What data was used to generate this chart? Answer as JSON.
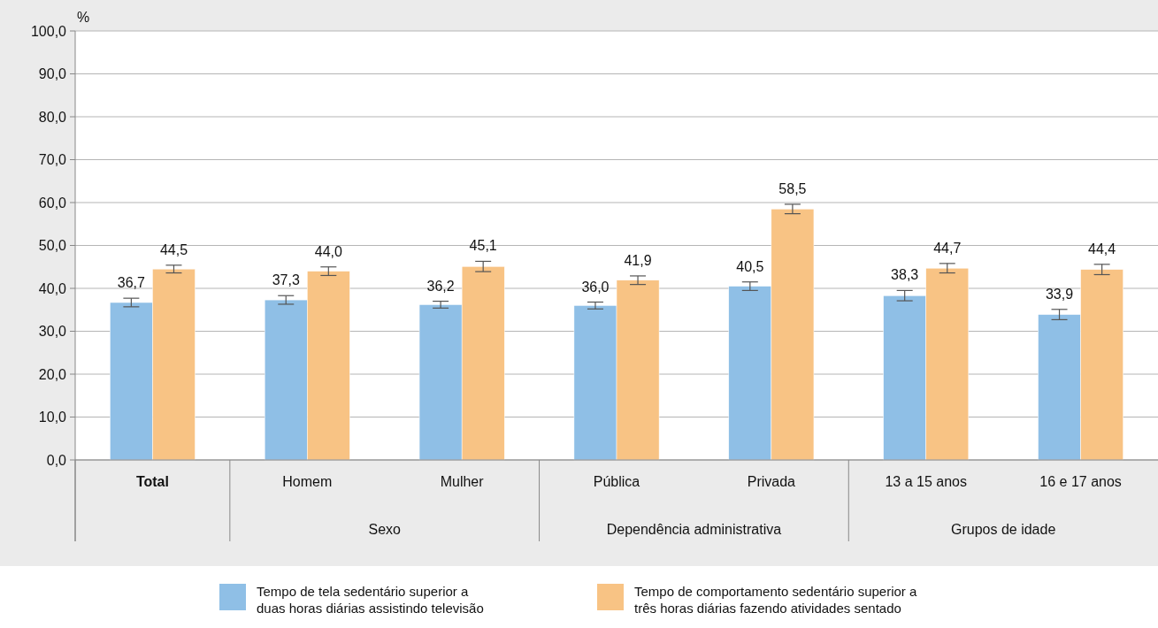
{
  "chart_data": {
    "type": "bar",
    "ylabel": "%",
    "categories": [
      "Total",
      "Homem",
      "Mulher",
      "Pública",
      "Privada",
      "13 a 15 anos",
      "16 e 17 anos"
    ],
    "annotations": [
      "Sexo",
      "Dependência administrativa",
      "Grupos de idade"
    ],
    "series": [
      {
        "name": "Tempo de tela sedentário superior a duas horas diárias assistindo televisão",
        "color": "#8fbfe6",
        "values": [
          36.7,
          37.3,
          36.2,
          36.0,
          40.5,
          38.3,
          33.9
        ],
        "value_labels": [
          "36,7",
          "37,3",
          "36,2",
          "36,0",
          "40,5",
          "38,3",
          "33,9"
        ],
        "errors": [
          1.0,
          1.0,
          0.8,
          0.8,
          1.0,
          1.2,
          1.2
        ]
      },
      {
        "name": "Tempo de comportamento sedentário superior a três horas diárias fazendo atividades sentado",
        "color": "#f8c384",
        "values": [
          44.5,
          44.0,
          45.1,
          41.9,
          58.5,
          44.7,
          44.4
        ],
        "value_labels": [
          "44,5",
          "44,0",
          "45,1",
          "41,9",
          "58,5",
          "44,7",
          "44,4"
        ],
        "errors": [
          0.9,
          1.0,
          1.2,
          1.0,
          1.1,
          1.1,
          1.2
        ]
      }
    ],
    "ylim": [
      0,
      100
    ],
    "yticks": [
      {
        "value": 0,
        "label": "0,0"
      },
      {
        "value": 10,
        "label": "10,0"
      },
      {
        "value": 20,
        "label": "20,0"
      },
      {
        "value": 30,
        "label": "30,0"
      },
      {
        "value": 40,
        "label": "40,0"
      },
      {
        "value": 50,
        "label": "50,0"
      },
      {
        "value": 60,
        "label": "60,0"
      },
      {
        "value": 70,
        "label": "70,0"
      },
      {
        "value": 80,
        "label": "80,0"
      },
      {
        "value": 90,
        "label": "90,0"
      },
      {
        "value": 100,
        "label": "100,0"
      }
    ],
    "grid": "y",
    "legend": "bottom"
  }
}
